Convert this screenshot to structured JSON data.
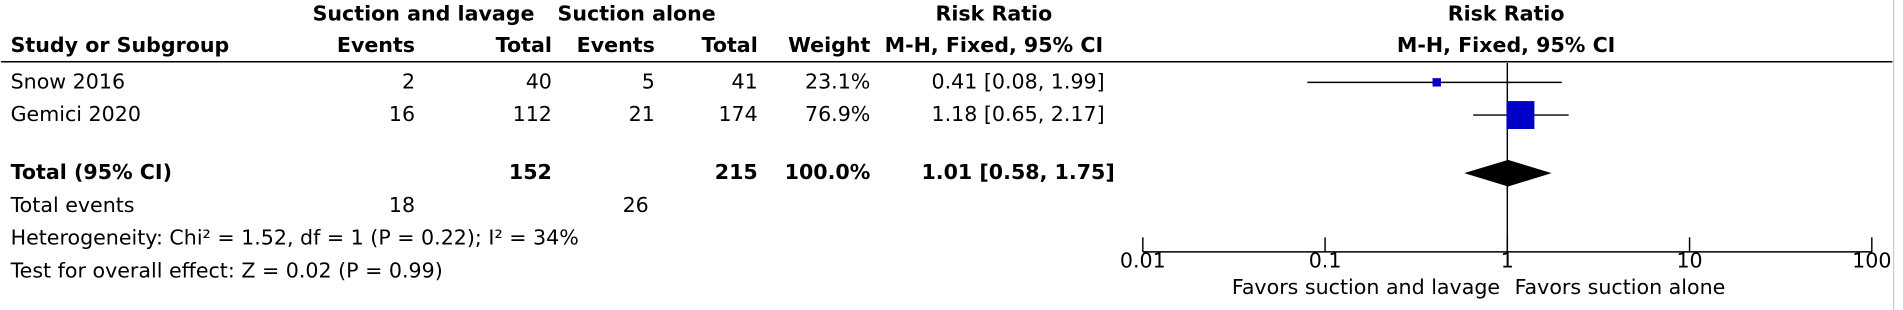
{
  "chart_data": {
    "type": "forest",
    "group1_header": "Suction and lavage",
    "group2_header": "Suction alone",
    "effect_header": "Risk Ratio",
    "plot_header": "Risk Ratio",
    "columns": [
      "Study or Subgroup",
      "Events",
      "Total",
      "Events",
      "Total",
      "Weight",
      "M-H, Fixed, 95% CI"
    ],
    "plot_method": "M-H, Fixed, 95% CI",
    "studies": [
      {
        "name": "Snow 2016",
        "events1": 2,
        "total1": 40,
        "events2": 5,
        "total2": 41,
        "weight": 23.1,
        "weight_label": "23.1%",
        "rr": 0.41,
        "lower": 0.08,
        "upper": 1.99,
        "ci_label": "0.41 [0.08, 1.99]"
      },
      {
        "name": "Gemici 2020",
        "events1": 16,
        "total1": 112,
        "events2": 21,
        "total2": 174,
        "weight": 76.9,
        "weight_label": "76.9%",
        "rr": 1.18,
        "lower": 0.65,
        "upper": 2.17,
        "ci_label": "1.18 [0.65, 2.17]"
      }
    ],
    "total": {
      "name": "Total (95% CI)",
      "total1": 152,
      "total2": 215,
      "weight": 100.0,
      "weight_label": "100.0%",
      "rr": 1.01,
      "lower": 0.58,
      "upper": 1.75,
      "ci_label": "1.01 [0.58, 1.75]"
    },
    "total_events": {
      "name": "Total events",
      "events1": 18,
      "events2": 26
    },
    "heterogeneity": "Heterogeneity: Chi² = 1.52, df = 1 (P = 0.22); I² = 34%",
    "overall_effect": "Test for overall effect: Z = 0.02 (P = 0.99)",
    "xscale": "log",
    "xlim": [
      0.01,
      100
    ],
    "xticks": [
      0.01,
      0.1,
      1,
      10,
      100
    ],
    "favors_left": "Favors suction and lavage",
    "favors_right": "Favors suction alone",
    "marker_color": "#0000c8",
    "total_color": "#000000"
  }
}
